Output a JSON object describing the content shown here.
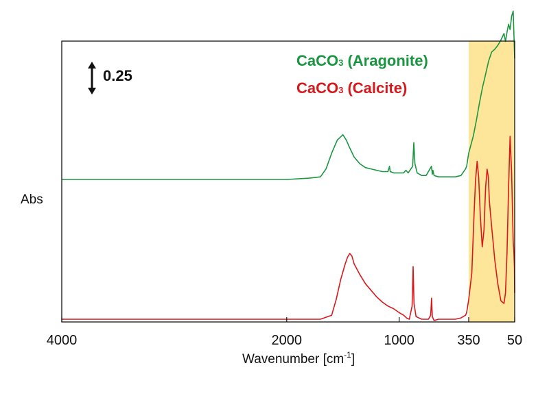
{
  "chart_data": {
    "type": "line",
    "xlabel": "Wavenumber [cm",
    "xlabel_sup": "-1",
    "xlabel_close": "]",
    "ylabel": "Abs",
    "x_axis": {
      "note": "broken/reversed axis: linear 4000-400 then expanded 350-50 region",
      "ticks": [
        {
          "value": 4000,
          "label": "4000"
        },
        {
          "value": 2000,
          "label": "2000"
        },
        {
          "value": 1000,
          "label": "1000"
        },
        {
          "value": 350,
          "label": "350"
        },
        {
          "value": 50,
          "label": "50"
        }
      ]
    },
    "scale_bar": {
      "label": "0.25",
      "value": 0.25
    },
    "highlight_region": {
      "x": [
        350,
        50
      ],
      "color": "#fde59a"
    },
    "legend": [
      {
        "name": "CaCO",
        "sub": "3",
        "suffix": " (Aragonite)",
        "color": "#1a9641"
      },
      {
        "name": "CaCO",
        "sub": "3",
        "suffix": " (Calcite)",
        "color": "#d7191c"
      }
    ],
    "series": [
      {
        "name": "CaCO3 (Aragonite)",
        "color": "#1a9641",
        "x": [
          4000,
          3000,
          2000,
          1800,
          1700,
          1650,
          1600,
          1550,
          1500,
          1470,
          1440,
          1400,
          1350,
          1300,
          1250,
          1200,
          1150,
          1100,
          1086,
          1080,
          1050,
          1000,
          960,
          940,
          920,
          880,
          870,
          860,
          840,
          800,
          760,
          713,
          705,
          700,
          690,
          650,
          600,
          550,
          500,
          450,
          410,
          400,
          350,
          320,
          300,
          280,
          260,
          240,
          220,
          200,
          180,
          160,
          140,
          120,
          110,
          100,
          90,
          80,
          70,
          60,
          50
        ],
        "y": [
          0.0,
          0.0,
          0.0,
          0.01,
          0.02,
          0.08,
          0.2,
          0.3,
          0.34,
          0.3,
          0.24,
          0.17,
          0.12,
          0.09,
          0.08,
          0.07,
          0.06,
          0.06,
          0.1,
          0.06,
          0.05,
          0.05,
          0.05,
          0.07,
          0.05,
          0.1,
          0.28,
          0.12,
          0.05,
          0.03,
          0.03,
          0.1,
          0.04,
          0.07,
          0.03,
          0.02,
          0.02,
          0.02,
          0.02,
          0.03,
          0.08,
          0.1,
          0.2,
          0.33,
          0.45,
          0.58,
          0.7,
          0.8,
          0.9,
          0.97,
          0.99,
          1.02,
          1.06,
          1.11,
          1.05,
          1.12,
          1.18,
          1.14,
          1.24,
          1.28,
          0.92
        ]
      },
      {
        "name": "CaCO3 (Calcite)",
        "color": "#d7191c",
        "x": [
          4000,
          3000,
          2500,
          2000,
          1800,
          1700,
          1600,
          1560,
          1520,
          1480,
          1460,
          1440,
          1420,
          1400,
          1350,
          1300,
          1250,
          1200,
          1150,
          1100,
          1050,
          1000,
          960,
          935,
          910,
          885,
          876,
          868,
          850,
          800,
          760,
          740,
          720,
          712,
          705,
          690,
          650,
          600,
          550,
          500,
          450,
          410,
          400,
          350,
          330,
          315,
          305,
          295,
          285,
          275,
          262,
          250,
          240,
          230,
          222,
          215,
          200,
          180,
          160,
          140,
          120,
          110,
          100,
          90,
          80,
          70,
          60,
          55,
          52,
          50
        ],
        "y": [
          0.0,
          0.0,
          0.0,
          0.0,
          0.0,
          0.0,
          0.03,
          0.15,
          0.3,
          0.42,
          0.47,
          0.5,
          0.48,
          0.42,
          0.34,
          0.27,
          0.22,
          0.17,
          0.13,
          0.1,
          0.08,
          0.05,
          0.03,
          0.01,
          0.0,
          0.1,
          0.4,
          0.12,
          0.02,
          0.0,
          0.0,
          0.0,
          0.03,
          0.16,
          0.02,
          -0.01,
          0.0,
          0.0,
          0.0,
          0.0,
          0.01,
          0.03,
          0.05,
          0.15,
          0.35,
          0.8,
          1.06,
          1.2,
          1.08,
          0.8,
          0.55,
          0.68,
          1.0,
          1.14,
          1.08,
          0.9,
          0.7,
          0.45,
          0.27,
          0.14,
          0.12,
          0.2,
          0.5,
          1.0,
          1.39,
          1.12,
          0.6,
          0.5,
          0.4,
          0.2
        ]
      }
    ]
  }
}
